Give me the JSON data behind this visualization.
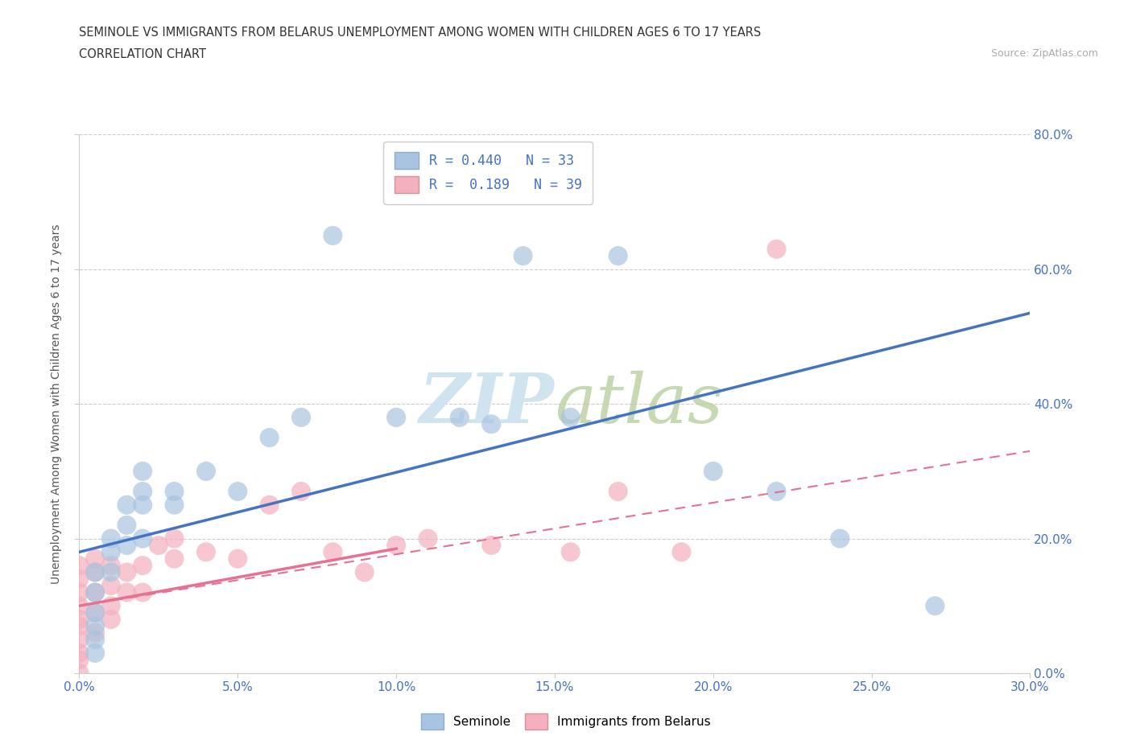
{
  "title_line1": "SEMINOLE VS IMMIGRANTS FROM BELARUS UNEMPLOYMENT AMONG WOMEN WITH CHILDREN AGES 6 TO 17 YEARS",
  "title_line2": "CORRELATION CHART",
  "source_text": "Source: ZipAtlas.com",
  "ylabel": "Unemployment Among Women with Children Ages 6 to 17 years",
  "xlim": [
    0.0,
    0.3
  ],
  "ylim": [
    0.0,
    0.8
  ],
  "xtick_labels": [
    "0.0%",
    "5.0%",
    "10.0%",
    "15.0%",
    "20.0%",
    "25.0%",
    "30.0%"
  ],
  "xtick_values": [
    0.0,
    0.05,
    0.1,
    0.15,
    0.2,
    0.25,
    0.3
  ],
  "ytick_labels": [
    "0.0%",
    "20.0%",
    "40.0%",
    "60.0%",
    "80.0%"
  ],
  "ytick_values": [
    0.0,
    0.2,
    0.4,
    0.6,
    0.8
  ],
  "seminole_color": "#a8c4e0",
  "belarus_color": "#f4b0be",
  "trendline_seminole_color": "#4472c4",
  "trendline_belarus_color": "#e87090",
  "watermark_color": "#d0e4f0",
  "legend_label1": "R = 0.440   N = 33",
  "legend_label2": "R =  0.189   N = 39",
  "seminole_x": [
    0.005,
    0.005,
    0.005,
    0.005,
    0.005,
    0.005,
    0.01,
    0.01,
    0.01,
    0.015,
    0.015,
    0.015,
    0.02,
    0.02,
    0.02,
    0.02,
    0.03,
    0.03,
    0.04,
    0.05,
    0.06,
    0.07,
    0.08,
    0.1,
    0.12,
    0.13,
    0.14,
    0.155,
    0.17,
    0.2,
    0.22,
    0.24,
    0.27
  ],
  "seminole_y": [
    0.03,
    0.05,
    0.07,
    0.09,
    0.12,
    0.15,
    0.15,
    0.18,
    0.2,
    0.19,
    0.22,
    0.25,
    0.2,
    0.25,
    0.27,
    0.3,
    0.25,
    0.27,
    0.3,
    0.27,
    0.35,
    0.38,
    0.65,
    0.38,
    0.38,
    0.37,
    0.62,
    0.38,
    0.62,
    0.3,
    0.27,
    0.2,
    0.1
  ],
  "belarus_x": [
    0.0,
    0.0,
    0.0,
    0.0,
    0.0,
    0.0,
    0.0,
    0.0,
    0.0,
    0.0,
    0.005,
    0.005,
    0.005,
    0.005,
    0.005,
    0.01,
    0.01,
    0.01,
    0.01,
    0.015,
    0.015,
    0.02,
    0.02,
    0.025,
    0.03,
    0.03,
    0.04,
    0.05,
    0.06,
    0.07,
    0.08,
    0.09,
    0.1,
    0.11,
    0.13,
    0.155,
    0.17,
    0.19,
    0.22
  ],
  "belarus_y": [
    0.0,
    0.02,
    0.03,
    0.05,
    0.07,
    0.08,
    0.1,
    0.12,
    0.14,
    0.16,
    0.06,
    0.09,
    0.12,
    0.15,
    0.17,
    0.08,
    0.1,
    0.13,
    0.16,
    0.12,
    0.15,
    0.12,
    0.16,
    0.19,
    0.17,
    0.2,
    0.18,
    0.17,
    0.25,
    0.27,
    0.18,
    0.15,
    0.19,
    0.2,
    0.19,
    0.18,
    0.27,
    0.18,
    0.63
  ],
  "trendline_sem_x0": 0.0,
  "trendline_sem_y0": 0.18,
  "trendline_sem_x1": 0.3,
  "trendline_sem_y1": 0.535,
  "trendline_bel_solid_x0": 0.0,
  "trendline_bel_solid_y0": 0.1,
  "trendline_bel_solid_x1": 0.1,
  "trendline_bel_solid_y1": 0.185,
  "trendline_bel_dash_x0": 0.0,
  "trendline_bel_dash_y0": 0.1,
  "trendline_bel_dash_x1": 0.3,
  "trendline_bel_dash_y1": 0.33,
  "background_color": "#ffffff",
  "grid_color": "#cccccc"
}
